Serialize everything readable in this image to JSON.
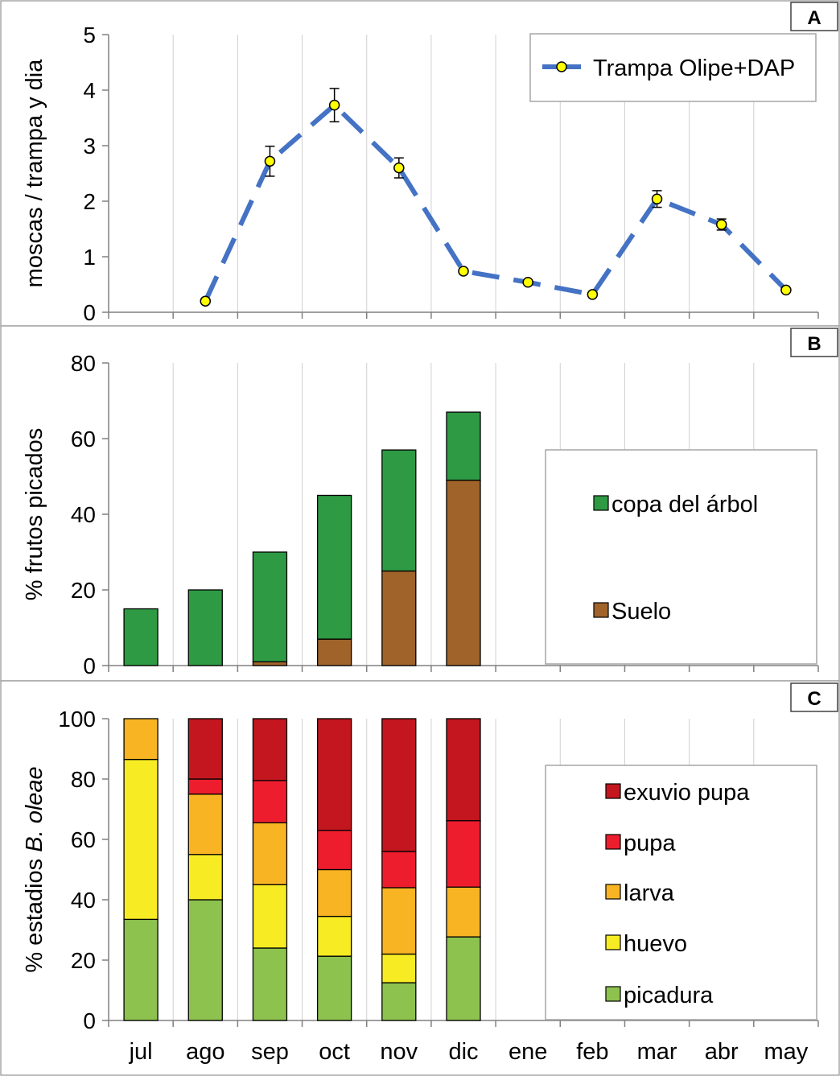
{
  "months": [
    "jul",
    "ago",
    "sep",
    "oct",
    "nov",
    "dic",
    "ene",
    "feb",
    "mar",
    "abr",
    "may"
  ],
  "chart_data": [
    {
      "panel": "A",
      "type": "line",
      "title": "",
      "ylabel": "moscas / trampa y dia",
      "xlabel": "",
      "ylim": [
        0,
        5
      ],
      "yticks": [
        0,
        1,
        2,
        3,
        4,
        5
      ],
      "grid": true,
      "legend_position": "top-right",
      "series": [
        {
          "name": "Trampa Olipe+DAP",
          "color": "#4472C4",
          "marker_color": "#FFFF00",
          "x": [
            "ago",
            "sep",
            "oct",
            "nov",
            "dic",
            "ene",
            "feb",
            "mar",
            "abr",
            "may"
          ],
          "values": [
            0.2,
            2.72,
            3.73,
            2.6,
            0.74,
            0.54,
            0.32,
            2.04,
            1.58,
            0.4
          ],
          "error": [
            0,
            0.27,
            0.3,
            0.18,
            0,
            0,
            0,
            0.15,
            0.1,
            0
          ]
        }
      ]
    },
    {
      "panel": "B",
      "type": "bar",
      "stacked": true,
      "title": "",
      "ylabel": "% frutos picados",
      "xlabel": "",
      "ylim": [
        0,
        80
      ],
      "yticks": [
        0,
        20,
        40,
        60,
        80
      ],
      "grid": true,
      "legend_position": "right",
      "categories": [
        "jul",
        "ago",
        "sep",
        "oct",
        "nov",
        "dic"
      ],
      "series": [
        {
          "name": "Suelo",
          "color": "#A0632A",
          "values": [
            0,
            0,
            1,
            7,
            25,
            49
          ]
        },
        {
          "name": "copa del árbol",
          "color": "#2E9A44",
          "values": [
            15,
            20,
            29,
            38,
            32,
            18
          ]
        }
      ],
      "legend_order": [
        "copa del árbol",
        "Suelo"
      ]
    },
    {
      "panel": "C",
      "type": "bar",
      "stacked": true,
      "title": "",
      "ylabel_parts": [
        "% estadios ",
        "B. oleae"
      ],
      "xlabel": "",
      "ylim": [
        0,
        100
      ],
      "yticks": [
        0,
        20,
        40,
        60,
        80,
        100
      ],
      "grid": true,
      "legend_position": "right",
      "categories": [
        "jul",
        "ago",
        "sep",
        "oct",
        "nov",
        "dic"
      ],
      "series": [
        {
          "name": "picadura",
          "color": "#8DC24F",
          "values": [
            33.5,
            40,
            24,
            21.3,
            12.5,
            27.7
          ]
        },
        {
          "name": "huevo",
          "color": "#F7EC23",
          "values": [
            53,
            15,
            21,
            13.2,
            9.5,
            0
          ]
        },
        {
          "name": "larva",
          "color": "#F8B423",
          "values": [
            13.5,
            20,
            20.5,
            15.5,
            22,
            16.5
          ]
        },
        {
          "name": "pupa",
          "color": "#EE1D2E",
          "values": [
            0,
            5,
            14,
            13,
            12,
            22
          ]
        },
        {
          "name": "exuvio pupa",
          "color": "#C4161F",
          "values": [
            0,
            20,
            20.5,
            37,
            44,
            33.8
          ]
        }
      ],
      "legend_order": [
        "exuvio pupa",
        "pupa",
        "larva",
        "huevo",
        "picadura"
      ]
    }
  ],
  "panel_labels": [
    "A",
    "B",
    "C"
  ]
}
